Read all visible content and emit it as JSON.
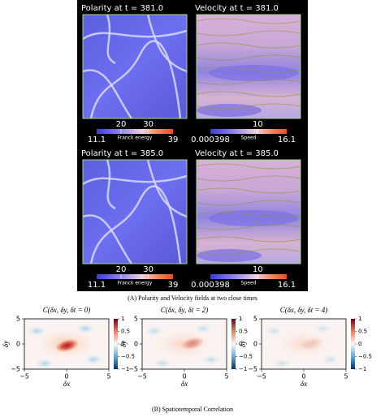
{
  "panel_a": {
    "panels": [
      {
        "title": "Polarity at t = 381.0",
        "kind": "polarity",
        "colorbar": {
          "min": 11.1,
          "max": 39,
          "ticks": [
            20,
            30
          ],
          "label": "Franck energy"
        }
      },
      {
        "title": "Velocity at t = 381.0",
        "kind": "velocity",
        "colorbar": {
          "min": 0.000398,
          "max": 16.1,
          "ticks": [
            10
          ],
          "label": "Speed"
        }
      },
      {
        "title": "Polarity at t = 385.0",
        "kind": "polarity",
        "colorbar": {
          "min": 11.1,
          "max": 39,
          "ticks": [
            20,
            30
          ],
          "label": "Franck energy"
        }
      },
      {
        "title": "Velocity at t = 385.0",
        "kind": "velocity",
        "colorbar": {
          "min": 0.000398,
          "max": 16.1,
          "ticks": [
            10
          ],
          "label": "Speed"
        }
      }
    ],
    "caption": "(A) Polarity and Velocity fields at two close times"
  },
  "panel_b": {
    "plots": [
      {
        "title": "C(δx, δy, δt = 0)",
        "strength": 1
      },
      {
        "title": "C(δx, δy, δt = 2)",
        "strength": 0.45
      },
      {
        "title": "C(δx, δy, δt = 4)",
        "strength": 0.15
      }
    ],
    "x_label": "δx",
    "y_label": "δy",
    "xticks": [
      "−5",
      "0",
      "5"
    ],
    "yticks": [
      "5",
      "0",
      "−5"
    ],
    "colorbar_ticks": [
      "1",
      "0.5",
      "0",
      "−0.5",
      "−1"
    ],
    "caption": "(B) Spatiotemporal Correlation"
  }
}
